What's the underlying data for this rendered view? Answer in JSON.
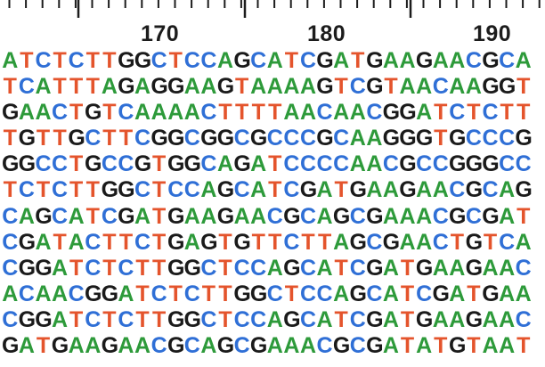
{
  "ruler": {
    "labels": [
      "170",
      "180",
      "190"
    ]
  },
  "sequence": {
    "rows": [
      "ATCTCTTGGCTCCAGCATCGATGAAGAACGCA",
      "TCATTTAGAGGAAGTAAAAGTCGTAACAAGGT",
      "GAACTGTCAAAACTTTTAACAACGGATCTCTT",
      "TGTTGCTTCGGCGGCGCCCGCAAGGGTGCCCG",
      "GGCCTGCCGTGGCAGATCCCCAACGCCGGGCC",
      "TCTCTTGGCTCCAGCATCGATGAAGAACGCAG",
      "CAGCATCGATGAAGAACGCAGCGAAACGCGAT",
      "CGATACTTCTGAGTGTTCTTAGCGAACTGTCA",
      "CGGATCTCTTGGCTCCAGCATCGATGAAGAAC",
      "ACAACGGATCTCTTGGCTCCAGCATCGATGAA",
      "CGGATCTCTTGGCTCCAGCATCGATGAAGAAC",
      "GATGAAGAACGCAGCGAAACGCGATATGTAAT"
    ]
  },
  "colors": {
    "A": "#2d9a3a",
    "T": "#e4542c",
    "C": "#2f6fd6",
    "G": "#1a1a1a",
    "ruler": "#1c1c1c"
  }
}
